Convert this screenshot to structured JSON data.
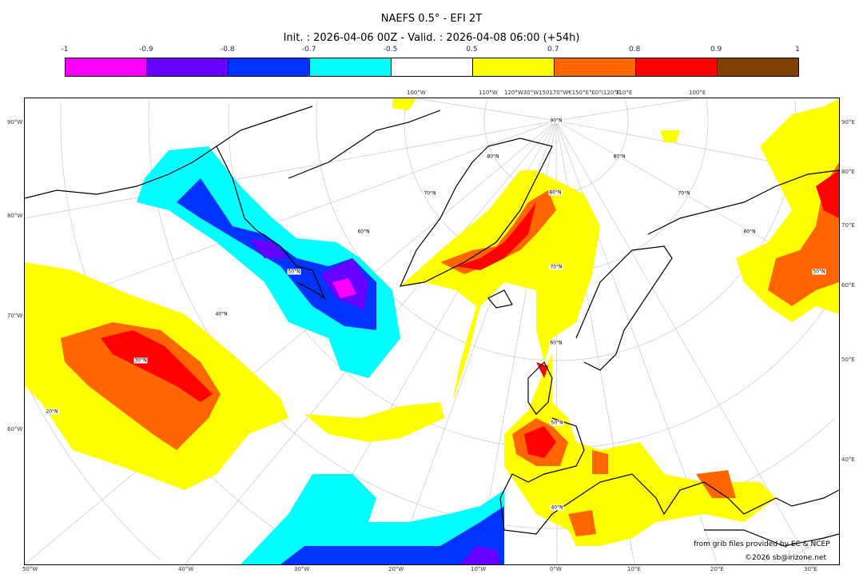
{
  "header": {
    "title": "NAEFS 0.5° - EFI 2T",
    "subtitle": "Init. : 2026-04-06 00Z - Valid. : 2026-04-08 06:00 (+54h)"
  },
  "colorbar": {
    "ticks": [
      "-1",
      "-0.9",
      "-0.8",
      "-0.7",
      "-0.5",
      "0.5",
      "0.7",
      "0.8",
      "0.9",
      "1"
    ],
    "colors": [
      "#ff00ff",
      "#6600ff",
      "#0033ff",
      "#00ffff",
      "#ffffff",
      "#ffff00",
      "#ff6600",
      "#ff0000",
      "#804000"
    ]
  },
  "map": {
    "projection": "polar stereographic, North Atlantic / Europe",
    "left_labels": [
      "90°W",
      "80°W",
      "70°W",
      "60°W"
    ],
    "right_labels": [
      "90°E",
      "80°E",
      "70°E",
      "60°E",
      "50°E",
      "40°E"
    ],
    "bottom_labels": [
      "50°W",
      "40°W",
      "30°W",
      "20°W",
      "10°W",
      "0°W",
      "10°E",
      "20°E",
      "30°E"
    ],
    "top_labels": [
      "100°W",
      "110°W",
      "120°W30°W150170°W€150°E°E0°I120°E",
      "110°E",
      "100°E"
    ],
    "lat_labels": [
      "90°N",
      "80°N",
      "80°N",
      "80°N",
      "70°N",
      "70°N",
      "70°N",
      "60°N",
      "60°N",
      "60°N",
      "50°N",
      "50°N",
      "50°N",
      "40°N",
      "40°N",
      "30°N",
      "20°N"
    ]
  },
  "credits": {
    "line1": "from grib files provided by EC & NCEP",
    "line2": "©2026 sb@irizone.net"
  }
}
